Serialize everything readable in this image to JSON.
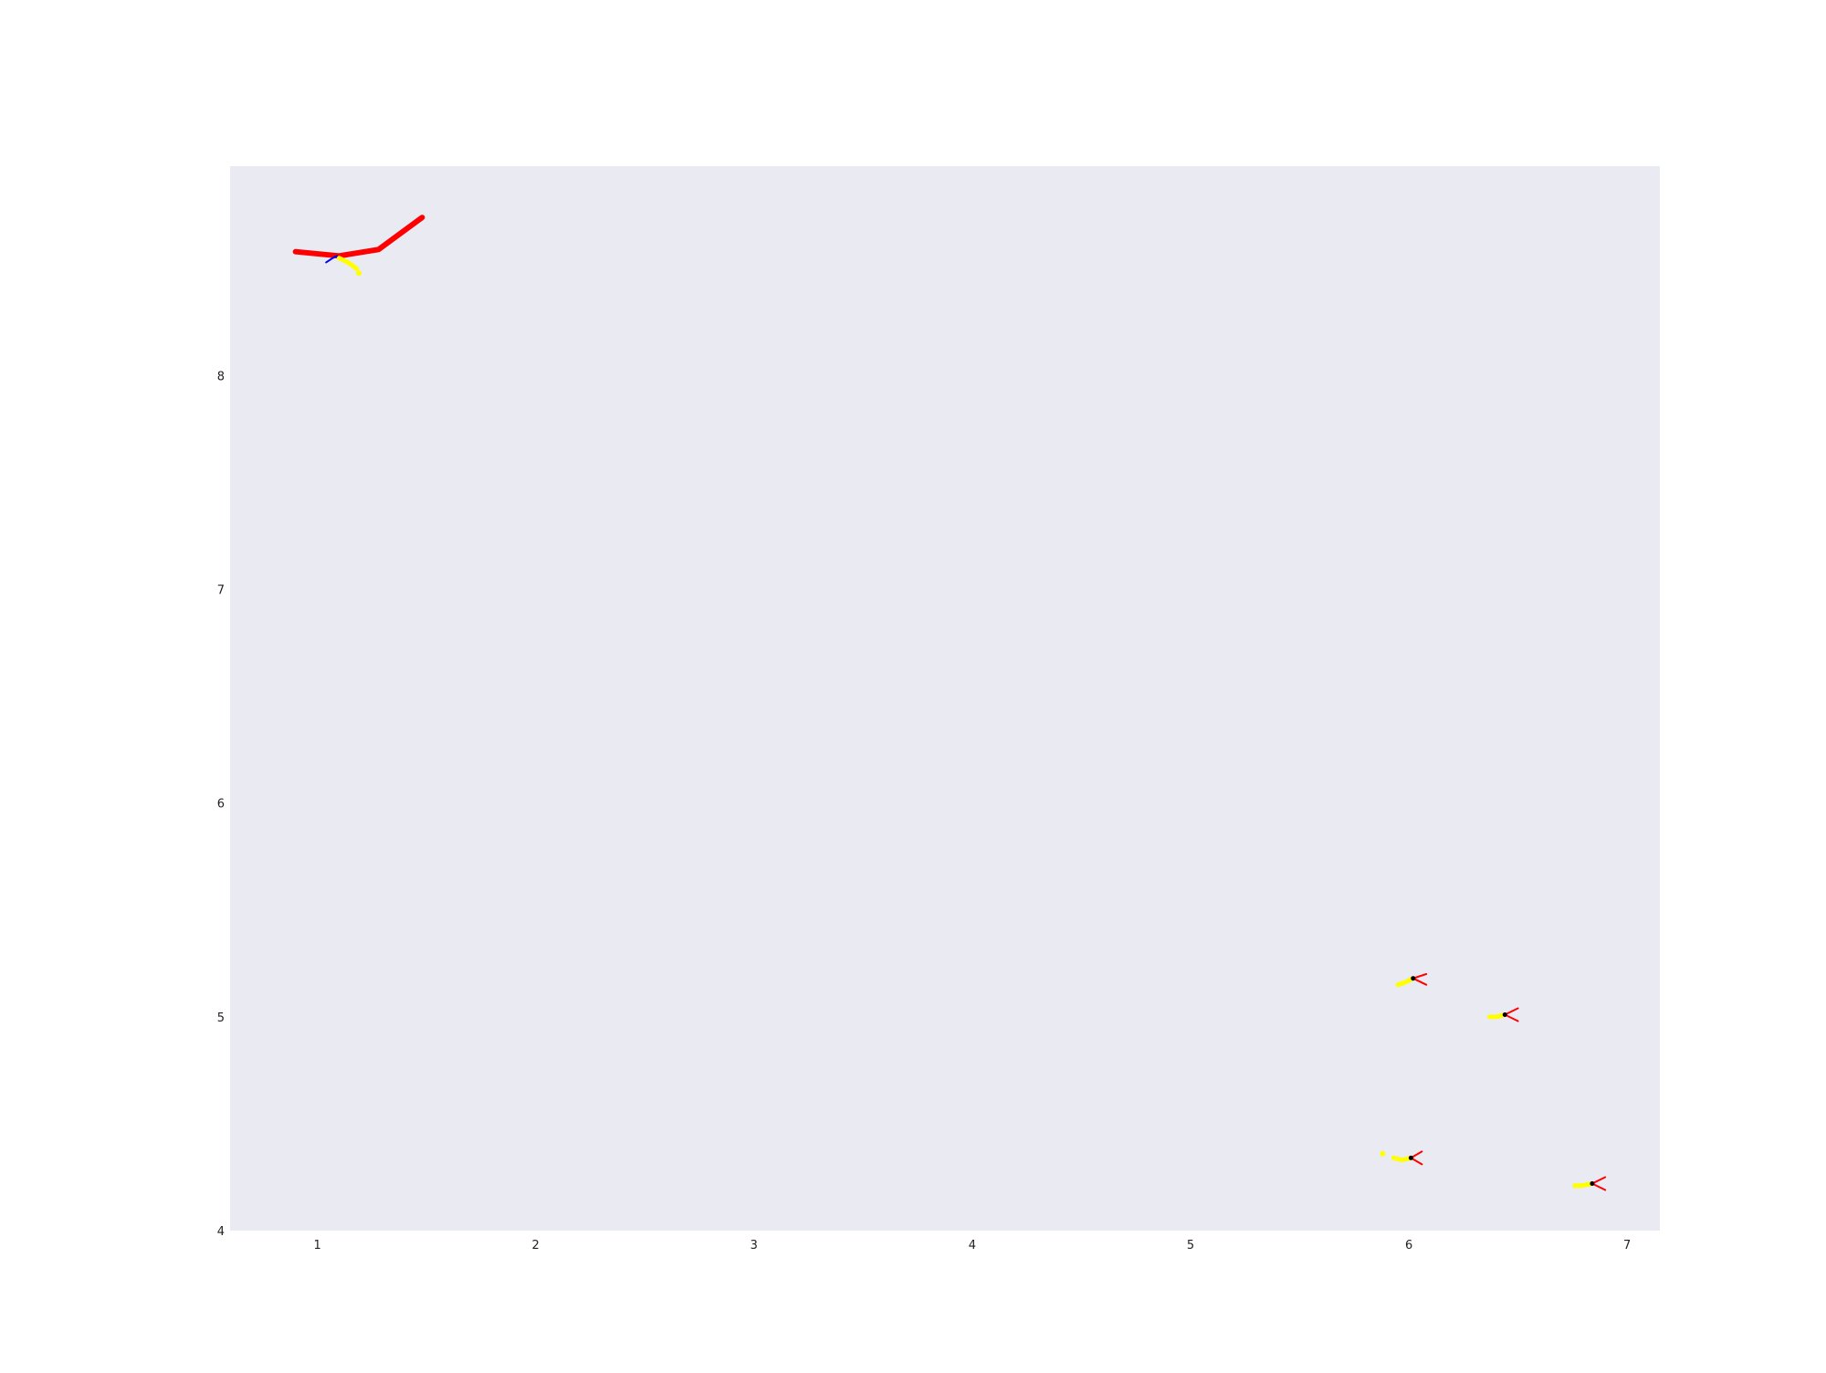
{
  "chart_data": {
    "type": "line",
    "title": "",
    "xlabel": "",
    "ylabel": "",
    "xlim": [
      0.6,
      7.15
    ],
    "ylim": [
      4.0,
      8.98
    ],
    "xticks": [
      1,
      2,
      3,
      4,
      5,
      6,
      7
    ],
    "yticks": [
      4,
      5,
      6,
      7,
      8
    ],
    "grid": false,
    "background_color": "#eaeaf2",
    "series": [
      {
        "color": "#ff0000",
        "values": [
          [
            0.9,
            8.58
          ],
          [
            1.1,
            8.56
          ],
          [
            1.28,
            8.59
          ],
          [
            1.48,
            8.74
          ]
        ]
      },
      {
        "color": "#0000ff",
        "values": [
          [
            1.04,
            8.53
          ],
          [
            1.07,
            8.55
          ],
          [
            1.09,
            8.56
          ]
        ]
      },
      {
        "color": "#ffff00",
        "values": [
          [
            1.1,
            8.55
          ],
          [
            1.14,
            8.53
          ],
          [
            1.18,
            8.5
          ]
        ]
      },
      {
        "color": "#ffff00",
        "values": [
          [
            5.95,
            5.15
          ],
          [
            5.98,
            5.16
          ],
          [
            6.02,
            5.18
          ]
        ]
      },
      {
        "color": "#ff0000",
        "values": [
          [
            6.08,
            5.2
          ],
          [
            6.02,
            5.18
          ],
          [
            6.08,
            5.15
          ]
        ]
      },
      {
        "color": "#ffff00",
        "values": [
          [
            6.37,
            5.0
          ],
          [
            6.4,
            5.0
          ],
          [
            6.44,
            5.01
          ]
        ]
      },
      {
        "color": "#ff0000",
        "values": [
          [
            6.5,
            5.04
          ],
          [
            6.44,
            5.01
          ],
          [
            6.5,
            4.98
          ]
        ]
      },
      {
        "color": "#ffff00",
        "values": [
          [
            5.93,
            4.34
          ],
          [
            5.97,
            4.33
          ],
          [
            6.01,
            4.34
          ]
        ]
      },
      {
        "color": "#ff0000",
        "values": [
          [
            6.06,
            4.37
          ],
          [
            6.01,
            4.34
          ],
          [
            6.06,
            4.31
          ]
        ]
      },
      {
        "color": "#ffff00",
        "values": [
          [
            6.76,
            4.21
          ],
          [
            6.79,
            4.21
          ],
          [
            6.84,
            4.22
          ]
        ]
      },
      {
        "color": "#ff0000",
        "values": [
          [
            6.9,
            4.25
          ],
          [
            6.84,
            4.22
          ],
          [
            6.9,
            4.19
          ]
        ]
      }
    ],
    "points": [
      {
        "color": "#ffff00",
        "x": 1.19,
        "y": 8.48
      },
      {
        "color": "#ffff00",
        "x": 5.88,
        "y": 4.36
      },
      {
        "color": "#000000",
        "x": 6.02,
        "y": 5.18
      },
      {
        "color": "#000000",
        "x": 6.44,
        "y": 5.01
      },
      {
        "color": "#000000",
        "x": 6.01,
        "y": 4.34
      },
      {
        "color": "#000000",
        "x": 6.84,
        "y": 4.22
      }
    ]
  }
}
